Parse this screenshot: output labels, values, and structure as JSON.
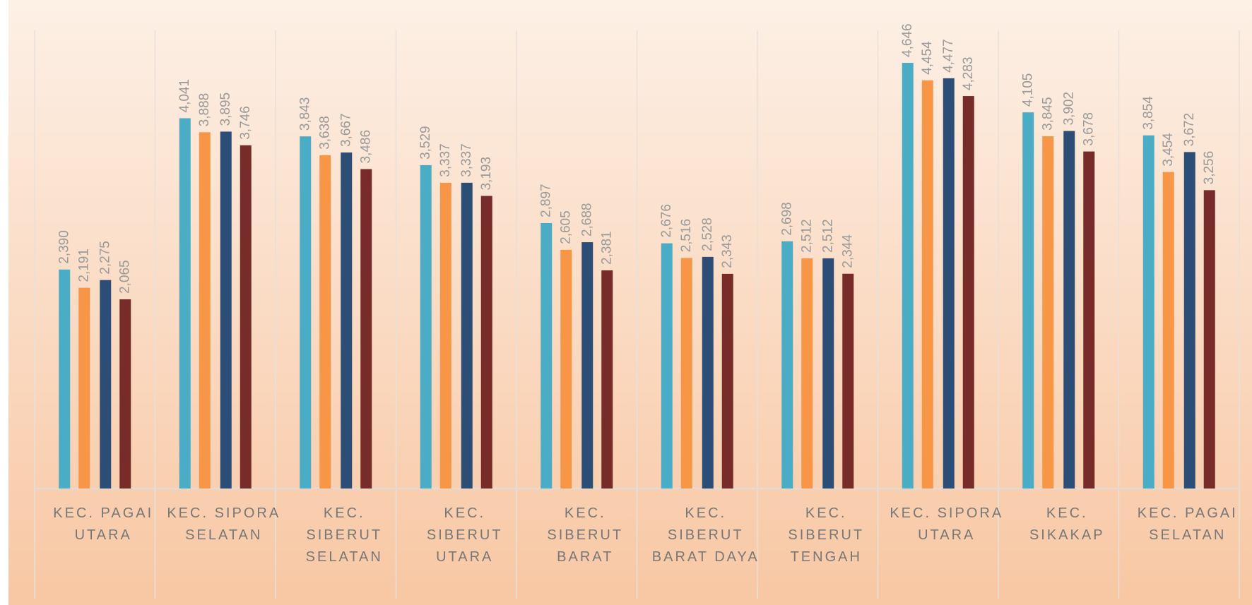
{
  "chart_data": {
    "type": "bar",
    "categories": [
      "KEC. PAGAI UTARA",
      "KEC. SIPORA SELATAN",
      "KEC. SIBERUT SELATAN",
      "KEC. SIBERUT UTARA",
      "KEC. SIBERUT BARAT",
      "KEC. SIBERUT BARAT DAYA",
      "KEC. SIBERUT TENGAH",
      "KEC. SIPORA UTARA",
      "KEC. SIKAKAP",
      "KEC. PAGAI SELATAN"
    ],
    "series": [
      {
        "color": "#4bacc6",
        "values": [
          2390,
          4041,
          3843,
          3529,
          2897,
          2676,
          2698,
          4646,
          4105,
          3854
        ],
        "value_labels": [
          "2,390",
          "4,041",
          "3,843",
          "3,529",
          "2,897",
          "2,676",
          "2,698",
          "4,646",
          "4,105",
          "3,854"
        ]
      },
      {
        "color": "#f79646",
        "values": [
          2191,
          3888,
          3638,
          3337,
          2605,
          2516,
          2512,
          4454,
          3845,
          3454
        ],
        "value_labels": [
          "2,191",
          "3,888",
          "3,638",
          "3,337",
          "2,605",
          "2,516",
          "2,512",
          "4,454",
          "3,845",
          "3,454"
        ]
      },
      {
        "color": "#2c4d75",
        "values": [
          2275,
          3895,
          3667,
          3337,
          2688,
          2528,
          2512,
          4477,
          3902,
          3672
        ],
        "value_labels": [
          "2,275",
          "3,895",
          "3,667",
          "3,337",
          "2,688",
          "2,528",
          "2,512",
          "4,477",
          "3,902",
          "3,672"
        ]
      },
      {
        "color": "#772c2a",
        "values": [
          2065,
          3746,
          3486,
          3193,
          2381,
          2343,
          2344,
          4283,
          3678,
          3256
        ],
        "value_labels": [
          "2,065",
          "3,746",
          "3,486",
          "3,193",
          "2,381",
          "2,343",
          "2,344",
          "4,283",
          "3,678",
          "3,256"
        ]
      }
    ],
    "ylim": [
      0,
      5000
    ]
  }
}
